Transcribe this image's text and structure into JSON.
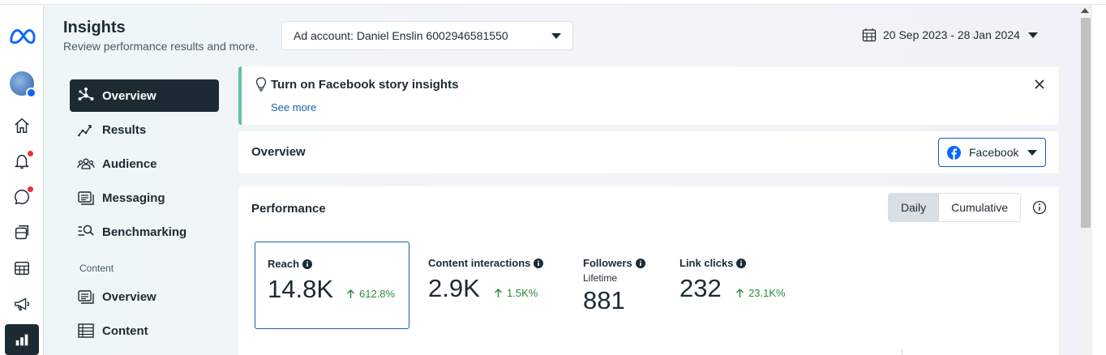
{
  "header": {
    "title": "Insights",
    "subtitle": "Review performance results and more.",
    "account_label": "Ad account: Daniel Enslin 6002946581550",
    "date_range": "20 Sep 2023 - 28 Jan 2024"
  },
  "rail": {
    "items": [
      "meta-logo-icon",
      "page-avatar",
      "home-icon",
      "notifications-icon",
      "messages-icon",
      "pages-icon",
      "table-icon",
      "megaphone-icon",
      "insights-icon"
    ]
  },
  "nav": {
    "items": [
      {
        "label": "Overview",
        "icon": "overview-icon",
        "active": true
      },
      {
        "label": "Results",
        "icon": "results-icon"
      },
      {
        "label": "Audience",
        "icon": "audience-icon"
      },
      {
        "label": "Messaging",
        "icon": "messaging-icon"
      },
      {
        "label": "Benchmarking",
        "icon": "benchmarking-icon"
      }
    ],
    "content_section": "Content",
    "content_items": [
      {
        "label": "Overview",
        "icon": "content-overview-icon"
      },
      {
        "label": "Content",
        "icon": "content-table-icon"
      }
    ]
  },
  "banner": {
    "title": "Turn on Facebook story insights",
    "link": "See more"
  },
  "overview": {
    "title": "Overview",
    "platform": "Facebook"
  },
  "performance": {
    "title": "Performance",
    "toggle": [
      "Daily",
      "Cumulative"
    ],
    "metrics": [
      {
        "label": "Reach",
        "value": "14.8K",
        "delta": "612.8%"
      },
      {
        "label": "Content interactions",
        "value": "2.9K",
        "delta": "1.5K%"
      },
      {
        "label": "Followers",
        "sub": "Lifetime",
        "value": "881"
      },
      {
        "label": "Link clicks",
        "value": "232",
        "delta": "23.1K%"
      }
    ]
  },
  "colors": {
    "accent": "#0a5bd8",
    "dark": "#1c2b33",
    "positive": "#2b8a3e",
    "banner_border": "#5dc1a7"
  }
}
